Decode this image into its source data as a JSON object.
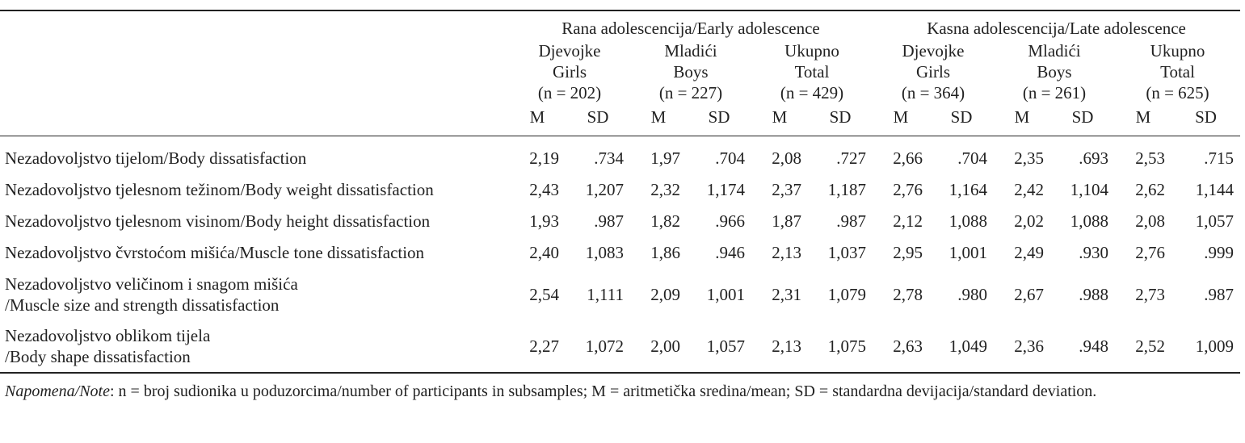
{
  "groups": [
    "Rana adolescencija/Early adolescence",
    "Kasna adolescencija/Late adolescence"
  ],
  "subgroups": [
    {
      "l1": "Djevojke",
      "l2": "Girls",
      "l3": "(n = 202)"
    },
    {
      "l1": "Mladići",
      "l2": "Boys",
      "l3": "(n = 227)"
    },
    {
      "l1": "Ukupno",
      "l2": "Total",
      "l3": "(n = 429)"
    },
    {
      "l1": "Djevojke",
      "l2": "Girls",
      "l3": "(n = 364)"
    },
    {
      "l1": "Mladići",
      "l2": "Boys",
      "l3": "(n = 261)"
    },
    {
      "l1": "Ukupno",
      "l2": "Total",
      "l3": "(n = 625)"
    }
  ],
  "stat_labels": {
    "m": "M",
    "sd": "SD"
  },
  "rows": [
    {
      "label": "Nezadovoljstvo tijelom/Body dissatisfaction",
      "label2": "",
      "values": [
        "2,19",
        ".734",
        "1,97",
        ".704",
        "2,08",
        ".727",
        "2,66",
        ".704",
        "2,35",
        ".693",
        "2,53",
        ".715"
      ]
    },
    {
      "label": "Nezadovoljstvo tjelesnom težinom/Body weight dissatisfaction",
      "label2": "",
      "values": [
        "2,43",
        "1,207",
        "2,32",
        "1,174",
        "2,37",
        "1,187",
        "2,76",
        "1,164",
        "2,42",
        "1,104",
        "2,62",
        "1,144"
      ]
    },
    {
      "label": "Nezadovoljstvo tjelesnom visinom/Body height dissatisfaction",
      "label2": "",
      "values": [
        "1,93",
        ".987",
        "1,82",
        ".966",
        "1,87",
        ".987",
        "2,12",
        "1,088",
        "2,02",
        "1,088",
        "2,08",
        "1,057"
      ]
    },
    {
      "label": "Nezadovoljstvo čvrstoćom mišića/Muscle tone dissatisfaction",
      "label2": "",
      "values": [
        "2,40",
        "1,083",
        "1,86",
        ".946",
        "2,13",
        "1,037",
        "2,95",
        "1,001",
        "2,49",
        ".930",
        "2,76",
        ".999"
      ]
    },
    {
      "label": "Nezadovoljstvo veličinom i snagom mišića",
      "label2": "/Muscle size and strength dissatisfaction",
      "values": [
        "2,54",
        "1,111",
        "2,09",
        "1,001",
        "2,31",
        "1,079",
        "2,78",
        ".980",
        "2,67",
        ".988",
        "2,73",
        ".987"
      ]
    },
    {
      "label": "Nezadovoljstvo oblikom tijela",
      "label2": "/Body shape dissatisfaction",
      "values": [
        "2,27",
        "1,072",
        "2,00",
        "1,057",
        "2,13",
        "1,075",
        "2,63",
        "1,049",
        "2,36",
        ".948",
        "2,52",
        "1,009"
      ]
    }
  ],
  "note": {
    "prefix": "Napomena/Note",
    "text": ": n = broj sudionika u poduzorcima/number of participants in subsamples; M = aritmetička sredina/mean; SD = standardna devijacija/standard deviation."
  }
}
